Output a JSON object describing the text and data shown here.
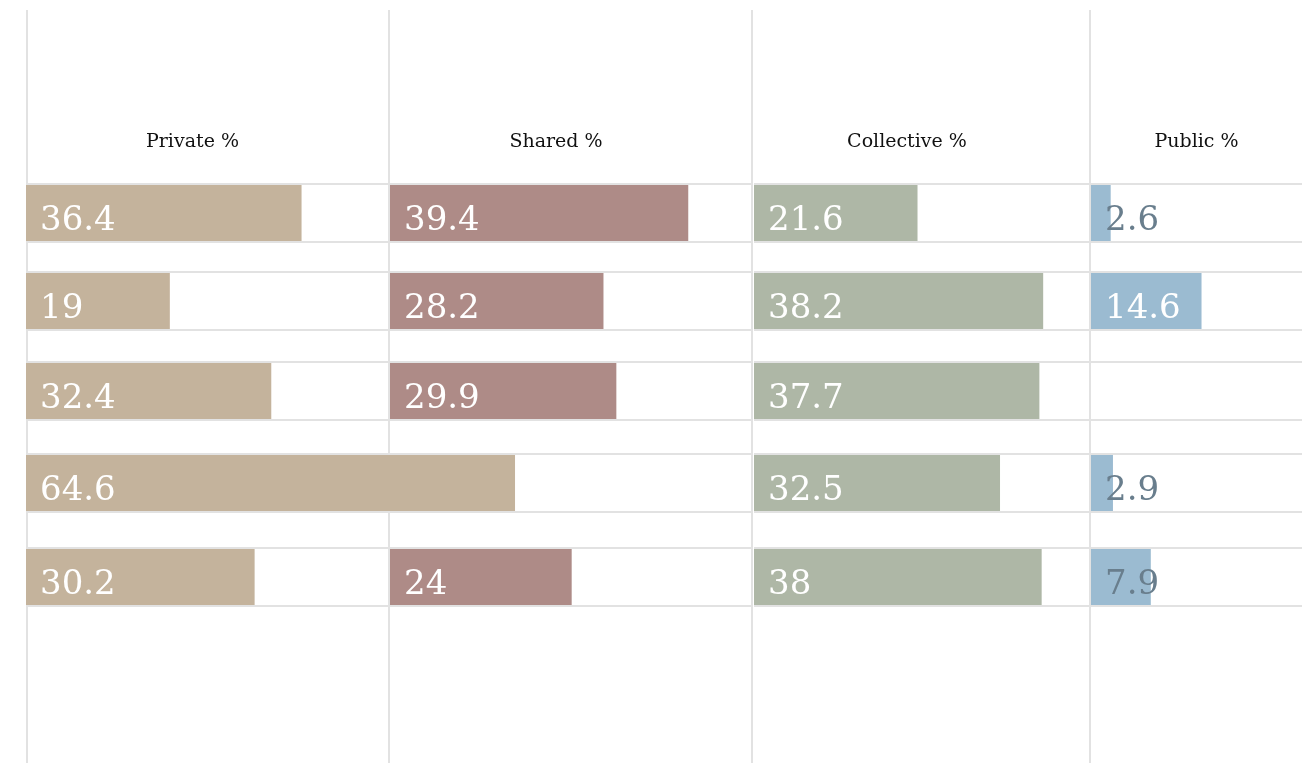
{
  "chart_data": [
    {
      "type": "bar",
      "orientation": "horizontal",
      "title": "Private %",
      "categories": [
        null,
        null,
        null,
        null,
        null
      ],
      "values": [
        36.4,
        19,
        32.4,
        64.6,
        30.2
      ],
      "color": "#c4b39c",
      "data_labels": true,
      "tick_labels": false
    },
    {
      "type": "bar",
      "orientation": "horizontal",
      "title": "Shared %",
      "categories": [
        null,
        null,
        null,
        null,
        null
      ],
      "values": [
        39.4,
        28.2,
        29.9,
        null,
        24
      ],
      "color": "#ae8b87",
      "data_labels": true,
      "tick_labels": false
    },
    {
      "type": "bar",
      "orientation": "horizontal",
      "title": "Collective %",
      "categories": [
        null,
        null,
        null,
        null,
        null
      ],
      "values": [
        21.6,
        38.2,
        37.7,
        32.5,
        38
      ],
      "color": "#aeb7a6",
      "data_labels": true,
      "tick_labels": false
    },
    {
      "type": "bar",
      "orientation": "horizontal",
      "title": "Public %",
      "categories": [
        null,
        null,
        null,
        null,
        null
      ],
      "values": [
        2.6,
        14.6,
        null,
        2.9,
        7.9
      ],
      "color": "#9bbbd1",
      "data_labels": true,
      "tick_labels": false
    }
  ]
}
